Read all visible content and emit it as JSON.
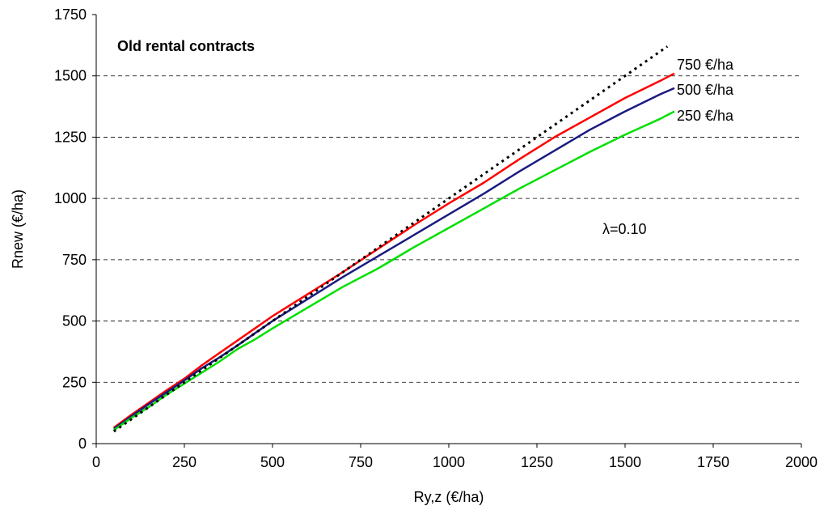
{
  "chart_data": {
    "type": "line",
    "title": "Old rental contracts",
    "xlabel": "Ry,z (€/ha)",
    "ylabel": "Rnew (€/ha)",
    "xlim": [
      0,
      2000
    ],
    "ylim": [
      0,
      1750
    ],
    "xticks": [
      0,
      250,
      500,
      750,
      1000,
      1250,
      1500,
      1750,
      2000
    ],
    "yticks": [
      0,
      250,
      500,
      750,
      1000,
      1250,
      1500,
      1750
    ],
    "grid": "horizontal dashed",
    "annotation": "λ=0.10",
    "series": [
      {
        "name": "750 €/ha",
        "color": "#ff0000",
        "dash": "solid",
        "x": [
          50,
          100,
          150,
          200,
          250,
          300,
          350,
          400,
          450,
          500,
          600,
          700,
          800,
          900,
          1000,
          1100,
          1200,
          1300,
          1400,
          1500,
          1600,
          1640
        ],
        "y": [
          65,
          118,
          168,
          218,
          265,
          320,
          370,
          420,
          470,
          520,
          610,
          700,
          795,
          890,
          980,
          1065,
          1160,
          1250,
          1330,
          1410,
          1480,
          1510
        ]
      },
      {
        "name": "500 €/ha",
        "color": "#1a1a80",
        "dash": "solid",
        "x": [
          50,
          100,
          150,
          200,
          250,
          300,
          350,
          400,
          450,
          500,
          600,
          700,
          800,
          900,
          1000,
          1100,
          1200,
          1300,
          1400,
          1500,
          1600,
          1640
        ],
        "y": [
          60,
          112,
          162,
          210,
          258,
          308,
          352,
          400,
          450,
          500,
          590,
          680,
          765,
          850,
          935,
          1020,
          1110,
          1195,
          1280,
          1355,
          1425,
          1450
        ]
      },
      {
        "name": "250 €/ha",
        "color": "#00e000",
        "dash": "solid",
        "x": [
          50,
          100,
          150,
          200,
          250,
          300,
          350,
          400,
          450,
          500,
          600,
          700,
          800,
          900,
          1000,
          1100,
          1200,
          1300,
          1400,
          1500,
          1600,
          1640
        ],
        "y": [
          55,
          105,
          150,
          200,
          245,
          290,
          335,
          385,
          425,
          470,
          555,
          640,
          715,
          800,
          880,
          960,
          1040,
          1115,
          1190,
          1260,
          1325,
          1355
        ]
      },
      {
        "name": "",
        "color": "#000000",
        "dash": "dotted",
        "x": [
          50,
          1620
        ],
        "y": [
          50,
          1620
        ]
      }
    ]
  }
}
